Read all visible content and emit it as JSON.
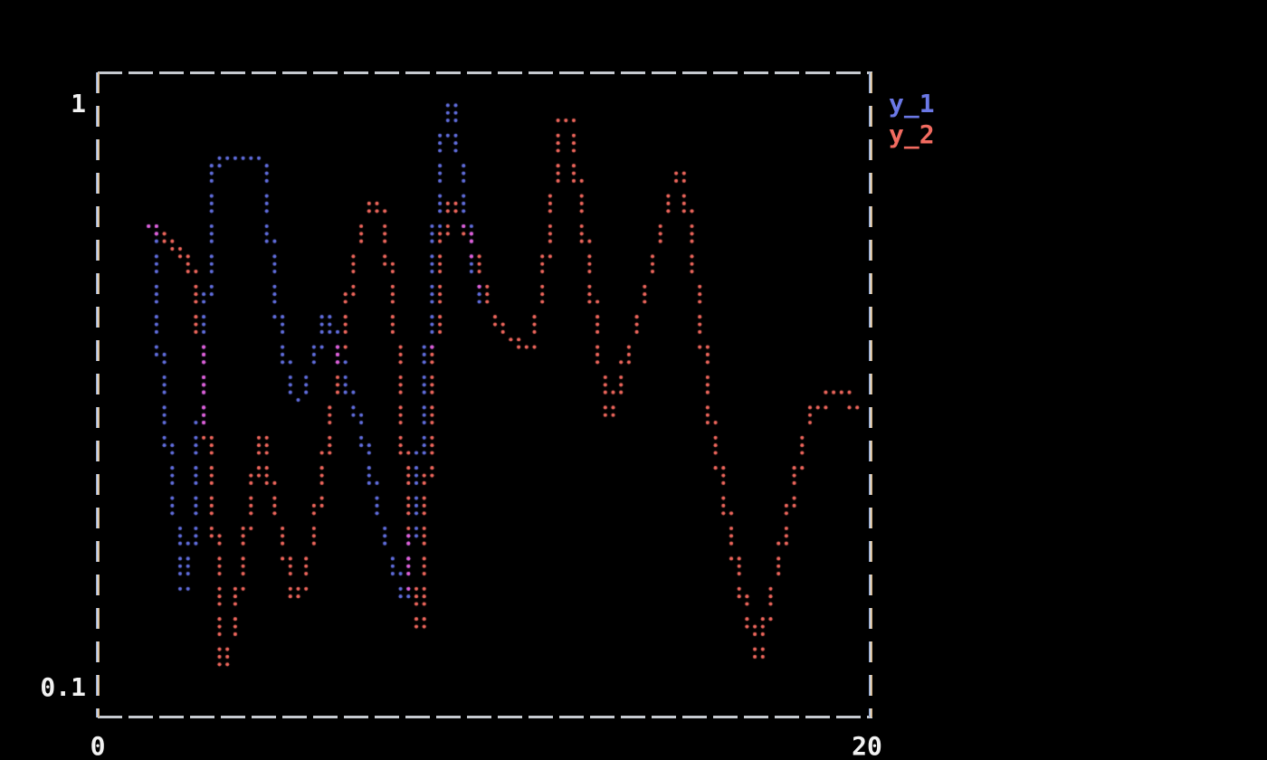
{
  "figure": {
    "background": "#000000",
    "border_color": "#c6cad0"
  },
  "axes": {
    "y_top_tick": "1",
    "y_bottom_tick": "0.1",
    "x_left_tick": "0",
    "x_right_tick": "20"
  },
  "legend": {
    "position": "outside-right-top",
    "items": [
      {
        "label": "y_1",
        "color": "#6b78e6"
      },
      {
        "label": "y_2",
        "color": "#f26b60"
      }
    ]
  },
  "chart_data": {
    "type": "scatter",
    "renderer": "terminal-braille-dots",
    "title": "",
    "xlabel": "",
    "ylabel": "",
    "xlim": [
      0,
      20
    ],
    "ylim": [
      0.1,
      1
    ],
    "yscale": "log",
    "grid": false,
    "overlap_color": "#e85fd9",
    "series": [
      {
        "name": "y_1",
        "color": "#626fe0",
        "points": [
          [
            1.29,
            0.667
          ],
          [
            1.46,
            0.409
          ],
          [
            1.6,
            0.324
          ],
          [
            1.74,
            0.252
          ],
          [
            1.9,
            0.203
          ],
          [
            2.07,
            0.159
          ],
          [
            2.16,
            0.142
          ],
          [
            2.28,
            0.148
          ],
          [
            2.39,
            0.203
          ],
          [
            2.54,
            0.281
          ],
          [
            2.68,
            0.387
          ],
          [
            2.82,
            0.57
          ],
          [
            2.93,
            0.778
          ],
          [
            3.03,
            0.81
          ],
          [
            4.18,
            0.81
          ],
          [
            4.32,
            0.651
          ],
          [
            4.44,
            0.531
          ],
          [
            4.58,
            0.431
          ],
          [
            4.72,
            0.376
          ],
          [
            4.86,
            0.341
          ],
          [
            5.0,
            0.31
          ],
          [
            5.12,
            0.293
          ],
          [
            5.28,
            0.326
          ],
          [
            5.45,
            0.354
          ],
          [
            5.61,
            0.384
          ],
          [
            5.75,
            0.413
          ],
          [
            5.87,
            0.439
          ],
          [
            6.06,
            0.39
          ],
          [
            6.24,
            0.358
          ],
          [
            6.43,
            0.322
          ],
          [
            6.6,
            0.304
          ],
          [
            6.71,
            0.276
          ],
          [
            6.85,
            0.259
          ],
          [
            6.99,
            0.229
          ],
          [
            7.14,
            0.205
          ],
          [
            7.28,
            0.186
          ],
          [
            7.44,
            0.169
          ],
          [
            7.61,
            0.157
          ],
          [
            7.77,
            0.147
          ],
          [
            7.91,
            0.14
          ],
          [
            8.05,
            0.176
          ],
          [
            8.19,
            0.218
          ],
          [
            8.31,
            0.276
          ],
          [
            8.43,
            0.354
          ],
          [
            8.54,
            0.463
          ],
          [
            8.66,
            0.606
          ],
          [
            8.78,
            0.765
          ],
          [
            8.9,
            0.921
          ],
          [
            8.99,
            1.0
          ],
          [
            9.13,
            1.0
          ],
          [
            9.22,
            0.876
          ],
          [
            9.32,
            0.759
          ],
          [
            9.41,
            0.667
          ],
          [
            9.53,
            0.591
          ],
          [
            9.65,
            0.523
          ],
          [
            9.77,
            0.48
          ],
          [
            9.88,
            0.443
          ],
          [
            9.98,
            0.428
          ]
        ]
      },
      {
        "name": "y_2",
        "color": "#f2685e",
        "points": [
          [
            1.29,
            0.617
          ],
          [
            1.5,
            0.599
          ],
          [
            1.71,
            0.587
          ],
          [
            1.9,
            0.564
          ],
          [
            2.09,
            0.552
          ],
          [
            2.25,
            0.537
          ],
          [
            2.37,
            0.506
          ],
          [
            2.46,
            0.455
          ],
          [
            2.56,
            0.38
          ],
          [
            2.65,
            0.318
          ],
          [
            2.75,
            0.264
          ],
          [
            2.84,
            0.222
          ],
          [
            2.91,
            0.195
          ],
          [
            2.98,
            0.169
          ],
          [
            3.05,
            0.145
          ],
          [
            3.12,
            0.119
          ],
          [
            3.17,
            0.1
          ],
          [
            3.26,
            0.108
          ],
          [
            3.38,
            0.123
          ],
          [
            3.5,
            0.135
          ],
          [
            3.61,
            0.153
          ],
          [
            3.71,
            0.173
          ],
          [
            3.8,
            0.195
          ],
          [
            3.92,
            0.217
          ],
          [
            4.04,
            0.241
          ],
          [
            4.18,
            0.268
          ],
          [
            4.3,
            0.239
          ],
          [
            4.41,
            0.217
          ],
          [
            4.53,
            0.198
          ],
          [
            4.65,
            0.181
          ],
          [
            4.77,
            0.166
          ],
          [
            4.88,
            0.152
          ],
          [
            5.0,
            0.14
          ],
          [
            5.09,
            0.135
          ],
          [
            5.21,
            0.147
          ],
          [
            5.35,
            0.162
          ],
          [
            5.47,
            0.182
          ],
          [
            5.61,
            0.206
          ],
          [
            5.73,
            0.229
          ],
          [
            5.85,
            0.259
          ],
          [
            5.96,
            0.293
          ],
          [
            6.08,
            0.333
          ],
          [
            6.2,
            0.371
          ],
          [
            6.31,
            0.421
          ],
          [
            6.45,
            0.478
          ],
          [
            6.57,
            0.532
          ],
          [
            6.69,
            0.59
          ],
          [
            6.81,
            0.636
          ],
          [
            6.92,
            0.667
          ],
          [
            7.07,
            0.689
          ],
          [
            7.21,
            0.673
          ],
          [
            7.32,
            0.622
          ],
          [
            7.44,
            0.542
          ],
          [
            7.56,
            0.461
          ],
          [
            7.65,
            0.389
          ],
          [
            7.75,
            0.322
          ],
          [
            7.84,
            0.261
          ],
          [
            7.93,
            0.208
          ],
          [
            8.03,
            0.162
          ],
          [
            8.1,
            0.128
          ],
          [
            8.17,
            0.107
          ],
          [
            8.26,
            0.125
          ],
          [
            8.36,
            0.165
          ],
          [
            8.45,
            0.218
          ],
          [
            8.54,
            0.288
          ],
          [
            8.64,
            0.37
          ],
          [
            8.73,
            0.461
          ],
          [
            8.83,
            0.552
          ],
          [
            8.92,
            0.632
          ],
          [
            9.04,
            0.681
          ],
          [
            9.18,
            0.66
          ],
          [
            9.32,
            0.628
          ],
          [
            9.46,
            0.61
          ],
          [
            9.6,
            0.57
          ],
          [
            9.74,
            0.528
          ],
          [
            9.88,
            0.491
          ],
          [
            10.02,
            0.456
          ],
          [
            10.16,
            0.429
          ],
          [
            10.3,
            0.413
          ],
          [
            10.45,
            0.403
          ],
          [
            10.61,
            0.394
          ],
          [
            10.77,
            0.386
          ],
          [
            10.92,
            0.378
          ],
          [
            11.03,
            0.373
          ],
          [
            11.17,
            0.39
          ],
          [
            11.29,
            0.427
          ],
          [
            11.41,
            0.483
          ],
          [
            11.53,
            0.554
          ],
          [
            11.64,
            0.632
          ],
          [
            11.74,
            0.72
          ],
          [
            11.85,
            0.842
          ],
          [
            11.95,
            0.948
          ],
          [
            12.04,
            0.979
          ],
          [
            12.16,
            0.931
          ],
          [
            12.25,
            0.827
          ],
          [
            12.35,
            0.732
          ],
          [
            12.44,
            0.65
          ],
          [
            12.53,
            0.591
          ],
          [
            12.63,
            0.528
          ],
          [
            12.72,
            0.473
          ],
          [
            12.82,
            0.422
          ],
          [
            12.91,
            0.371
          ],
          [
            13.0,
            0.329
          ],
          [
            13.1,
            0.299
          ],
          [
            13.19,
            0.29
          ],
          [
            13.31,
            0.312
          ],
          [
            13.43,
            0.333
          ],
          [
            13.57,
            0.36
          ],
          [
            13.71,
            0.385
          ],
          [
            13.85,
            0.413
          ],
          [
            13.99,
            0.446
          ],
          [
            14.13,
            0.483
          ],
          [
            14.27,
            0.528
          ],
          [
            14.41,
            0.578
          ],
          [
            14.55,
            0.628
          ],
          [
            14.69,
            0.675
          ],
          [
            14.84,
            0.724
          ],
          [
            14.95,
            0.759
          ],
          [
            15.07,
            0.764
          ],
          [
            15.16,
            0.712
          ],
          [
            15.23,
            0.639
          ],
          [
            15.31,
            0.57
          ],
          [
            15.38,
            0.521
          ],
          [
            15.45,
            0.483
          ],
          [
            15.52,
            0.439
          ],
          [
            15.59,
            0.399
          ],
          [
            15.66,
            0.361
          ],
          [
            15.73,
            0.326
          ],
          [
            15.8,
            0.293
          ],
          [
            15.87,
            0.268
          ],
          [
            15.96,
            0.245
          ],
          [
            16.06,
            0.228
          ],
          [
            16.15,
            0.211
          ],
          [
            16.24,
            0.196
          ],
          [
            16.34,
            0.181
          ],
          [
            16.43,
            0.167
          ],
          [
            16.53,
            0.155
          ],
          [
            16.62,
            0.145
          ],
          [
            16.71,
            0.136
          ],
          [
            16.83,
            0.127
          ],
          [
            16.92,
            0.117
          ],
          [
            16.99,
            0.107
          ],
          [
            17.11,
            0.118
          ],
          [
            17.21,
            0.127
          ],
          [
            17.32,
            0.141
          ],
          [
            17.44,
            0.152
          ],
          [
            17.56,
            0.164
          ],
          [
            17.68,
            0.177
          ],
          [
            17.79,
            0.195
          ],
          [
            17.91,
            0.212
          ],
          [
            18.03,
            0.233
          ],
          [
            18.15,
            0.255
          ],
          [
            18.26,
            0.273
          ],
          [
            18.38,
            0.288
          ],
          [
            18.5,
            0.299
          ],
          [
            18.61,
            0.303
          ],
          [
            18.73,
            0.303
          ],
          [
            18.85,
            0.314
          ],
          [
            18.94,
            0.322
          ],
          [
            19.41,
            0.322
          ],
          [
            19.48,
            0.303
          ],
          [
            19.84,
            0.303
          ]
        ]
      }
    ]
  }
}
